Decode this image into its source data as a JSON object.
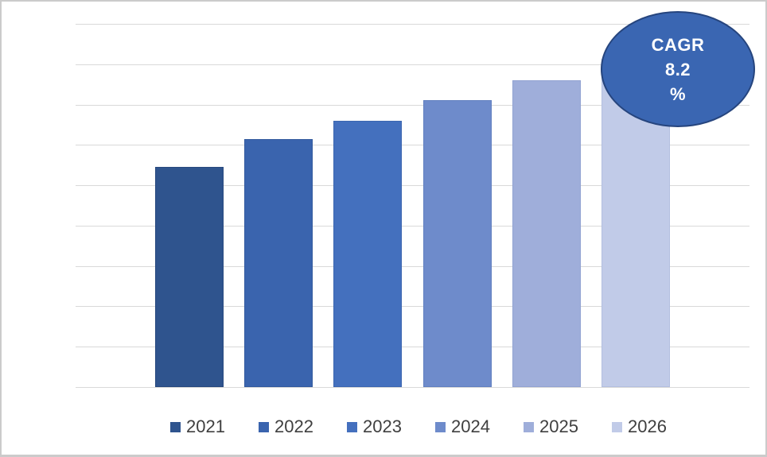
{
  "chart_data": {
    "type": "bar",
    "title": "",
    "xlabel": "",
    "ylabel": "",
    "categories": [
      "2021",
      "2022",
      "2023",
      "2024",
      "2025",
      "2026"
    ],
    "values": [
      5.45,
      6.15,
      6.6,
      7.1,
      7.6,
      8.13
    ],
    "ylim": [
      0,
      9
    ],
    "grid": true,
    "note": "No axis tick labels or data labels are visible; values estimated from horizontal gridlines (1 unit per gridline interval). Top of 2026 bar is hidden behind CAGR badge.",
    "legend_position": "bottom",
    "annotation": "CAGR 8.2 %",
    "bar_colors": [
      "#2f548e",
      "#3a64ae",
      "#4470be",
      "#6e8bcb",
      "#9faeda",
      "#c1cbe8"
    ],
    "bar_border_colors": [
      "#28497e",
      "#335a9e",
      "#3c66b0",
      "#6280c0",
      "#92a3d2",
      "#b3bfdf"
    ],
    "gridline_color": "#d9d9d9",
    "legend_text_color": "#3f3f3f"
  },
  "cagr_badge": {
    "line1": "CAGR",
    "line2": "8.2",
    "line3": "%",
    "fill_color": "#3a66b2",
    "border_color": "#26457e",
    "text_color": "#ffffff"
  },
  "frame": {
    "border_color": "#cbcbcb",
    "background_color": "#ffffff"
  }
}
